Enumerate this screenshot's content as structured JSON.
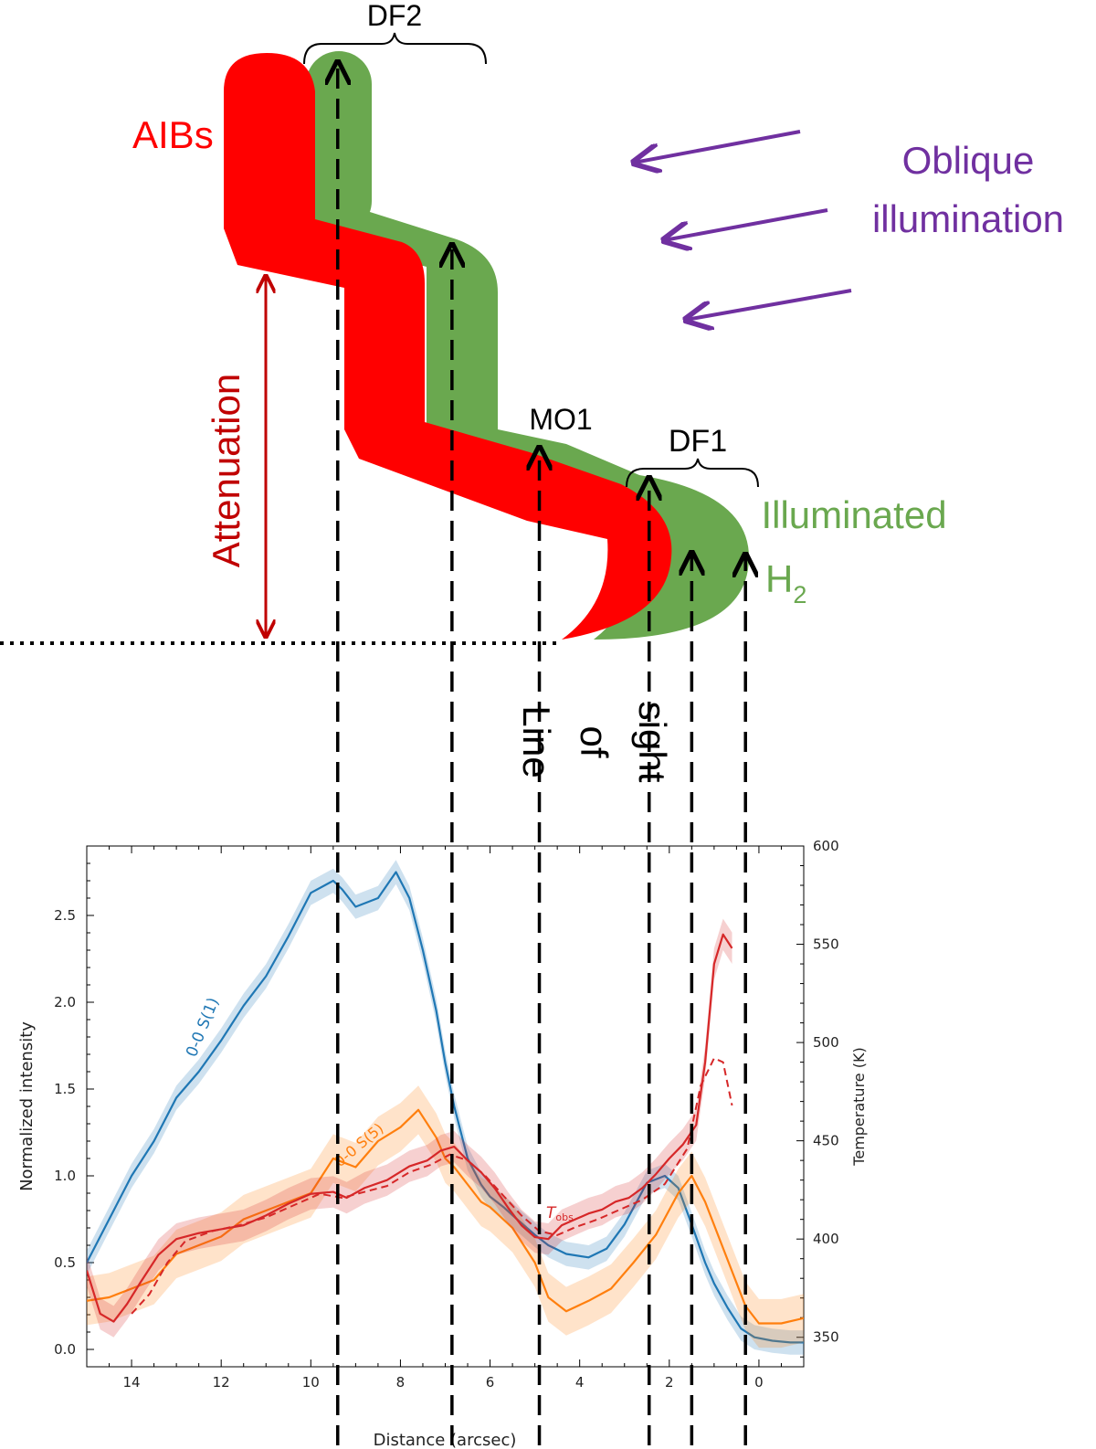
{
  "schematic": {
    "aibs_label": "AIBs",
    "oblique_line1": "Oblique",
    "oblique_line2": "illumination",
    "attenuation_label": "Attenuation",
    "df2_label": "DF2",
    "df1_label": "DF1",
    "mo1_label": "MO1",
    "illuminated_label": "Illuminated",
    "h2_label": "H",
    "h2_subscript": "2",
    "los_line1": "Line",
    "los_line2": "of",
    "los_line3": "sight",
    "colors": {
      "aibs": "#ff0000",
      "h2": "#6aa84f",
      "illumination": "#7030a0",
      "attenuation": "#c00000"
    }
  },
  "chart_data": {
    "type": "line",
    "xlabel": "Distance (arcsec)",
    "ylabel": "Normalized intensity",
    "y2label": "Temperature (K)",
    "xlim": [
      15,
      -1
    ],
    "ylim": [
      -0.1,
      2.9
    ],
    "y2lim": [
      335,
      600
    ],
    "xticks": [
      14,
      12,
      10,
      8,
      6,
      4,
      2,
      0
    ],
    "yticks": [
      0.0,
      0.5,
      1.0,
      1.5,
      2.0,
      2.5
    ],
    "y2ticks": [
      350,
      400,
      450,
      500,
      550,
      600
    ],
    "guide_lines_x": [
      9.4,
      6.85,
      4.9,
      2.45,
      1.5,
      0.3
    ],
    "series": [
      {
        "name": "0-0 S(1)",
        "axis": "left",
        "color": "#1f77b4",
        "band": 0.07,
        "x": [
          15,
          14.5,
          14,
          13.5,
          13,
          12.5,
          12,
          11.5,
          11,
          10.5,
          10,
          9.5,
          9.3,
          9,
          8.5,
          8.1,
          7.8,
          7.5,
          7.2,
          7,
          6.8,
          6.5,
          6.2,
          6,
          5.7,
          5.4,
          5,
          4.7,
          4.3,
          3.8,
          3.4,
          3.0,
          2.5,
          2.1,
          1.8,
          1.5,
          1.2,
          1.0,
          0.7,
          0.4,
          0.1,
          -0.3,
          -0.7,
          -1
        ],
        "y": [
          0.5,
          0.75,
          1.0,
          1.2,
          1.45,
          1.6,
          1.78,
          1.98,
          2.15,
          2.38,
          2.63,
          2.7,
          2.65,
          2.55,
          2.6,
          2.75,
          2.6,
          2.3,
          1.95,
          1.65,
          1.4,
          1.1,
          0.95,
          0.88,
          0.82,
          0.75,
          0.66,
          0.6,
          0.55,
          0.53,
          0.58,
          0.72,
          0.96,
          1.0,
          0.93,
          0.72,
          0.5,
          0.38,
          0.24,
          0.12,
          0.07,
          0.05,
          0.04,
          0.04
        ]
      },
      {
        "name": "0-0 S(5)",
        "axis": "left",
        "color": "#ff7f0e",
        "band": 0.14,
        "x": [
          15,
          14.5,
          14,
          13.5,
          13,
          12.5,
          12,
          11.5,
          11,
          10.5,
          10,
          9.5,
          9,
          8.5,
          8,
          7.6,
          7.2,
          7,
          6.8,
          6.5,
          6.2,
          6,
          5.5,
          5,
          4.7,
          4.3,
          3.8,
          3.3,
          2.8,
          2.3,
          1.8,
          1.5,
          1.2,
          0.9,
          0.6,
          0.3,
          0,
          -0.5,
          -1
        ],
        "y": [
          0.28,
          0.3,
          0.35,
          0.4,
          0.55,
          0.6,
          0.65,
          0.75,
          0.8,
          0.85,
          0.9,
          1.1,
          1.05,
          1.2,
          1.28,
          1.38,
          1.22,
          1.1,
          1.05,
          0.95,
          0.85,
          0.82,
          0.7,
          0.5,
          0.3,
          0.22,
          0.28,
          0.35,
          0.5,
          0.66,
          0.9,
          1.0,
          0.85,
          0.65,
          0.45,
          0.25,
          0.15,
          0.15,
          0.18
        ]
      },
      {
        "name": "T_obs",
        "axis": "right",
        "color": "#d62728",
        "band": 8,
        "x": [
          15,
          14.7,
          14.4,
          14.1,
          13.8,
          13.4,
          13,
          12.5,
          12,
          11.5,
          11,
          10.5,
          10,
          9.5,
          9.2,
          8.8,
          8.3,
          7.8,
          7.4,
          7.1,
          6.8,
          6.5,
          6.2,
          5.9,
          5.6,
          5.3,
          5.0,
          4.7,
          4.4,
          4.1,
          3.8,
          3.5,
          3.2,
          2.9,
          2.6,
          2.3,
          2.0,
          1.7,
          1.4,
          1.2,
          1.0,
          0.8,
          0.6
        ],
        "y": [
          384,
          362,
          358,
          367,
          378,
          392,
          400,
          403,
          405,
          407,
          412,
          418,
          423,
          424,
          421,
          426,
          430,
          437,
          440,
          445,
          447,
          440,
          434,
          426,
          416,
          407,
          401,
          400,
          407,
          410,
          413,
          415,
          419,
          421,
          426,
          433,
          441,
          448,
          458,
          490,
          540,
          555,
          548
        ]
      },
      {
        "name": "T_obs (dashed)",
        "axis": "right",
        "color": "#d62728",
        "dashed": true,
        "x": [
          14.0,
          13.6,
          13.2,
          12.8,
          12.2,
          11.6,
          11,
          10.4,
          9.8,
          9.3,
          8.8,
          8.3,
          7.8,
          7.3,
          6.9,
          6.5,
          6.1,
          5.7,
          5.3,
          4.9,
          4.5,
          4.1,
          3.6,
          3.1,
          2.6,
          2.1,
          1.6,
          1.3,
          1.0,
          0.8,
          0.6
        ],
        "y": [
          362,
          372,
          388,
          399,
          404,
          407,
          411,
          417,
          423,
          421,
          424,
          427,
          434,
          438,
          443,
          440,
          432,
          422,
          412,
          404,
          402,
          406,
          410,
          415,
          420,
          428,
          446,
          478,
          492,
          490,
          468
        ]
      }
    ],
    "annotations": [
      {
        "text": "0-0 S(1)",
        "color": "#1f77b4"
      },
      {
        "text": "0-0 S(5)",
        "color": "#ff7f0e"
      },
      {
        "text": "T",
        "sub": "obs",
        "color": "#d62728"
      }
    ]
  }
}
